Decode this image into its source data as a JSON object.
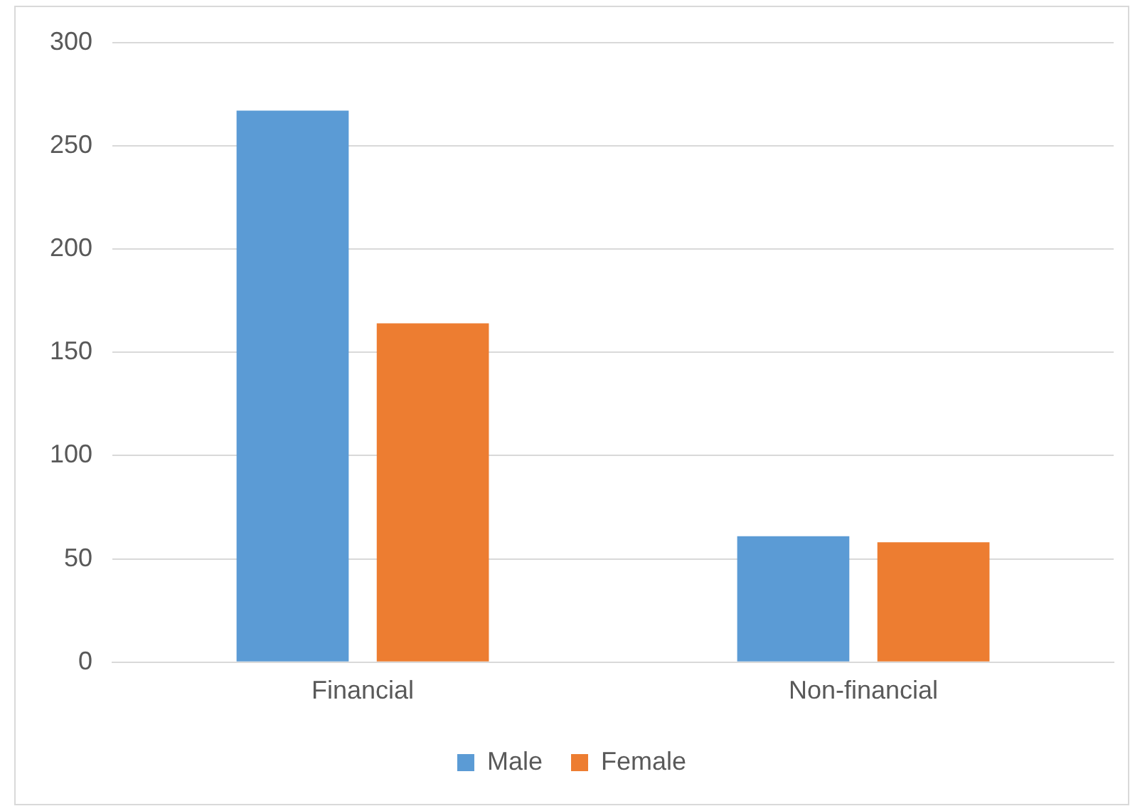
{
  "chart_data": {
    "type": "bar",
    "categories": [
      "Financial",
      "Non-financial"
    ],
    "series": [
      {
        "name": "Male",
        "color": "#5b9bd5",
        "values": [
          267,
          61
        ]
      },
      {
        "name": "Female",
        "color": "#ed7d31",
        "values": [
          164,
          58
        ]
      }
    ],
    "ylim": [
      0,
      300
    ],
    "yticks": [
      0,
      50,
      100,
      150,
      200,
      250,
      300
    ],
    "grid": "y",
    "legend": "bottom"
  }
}
